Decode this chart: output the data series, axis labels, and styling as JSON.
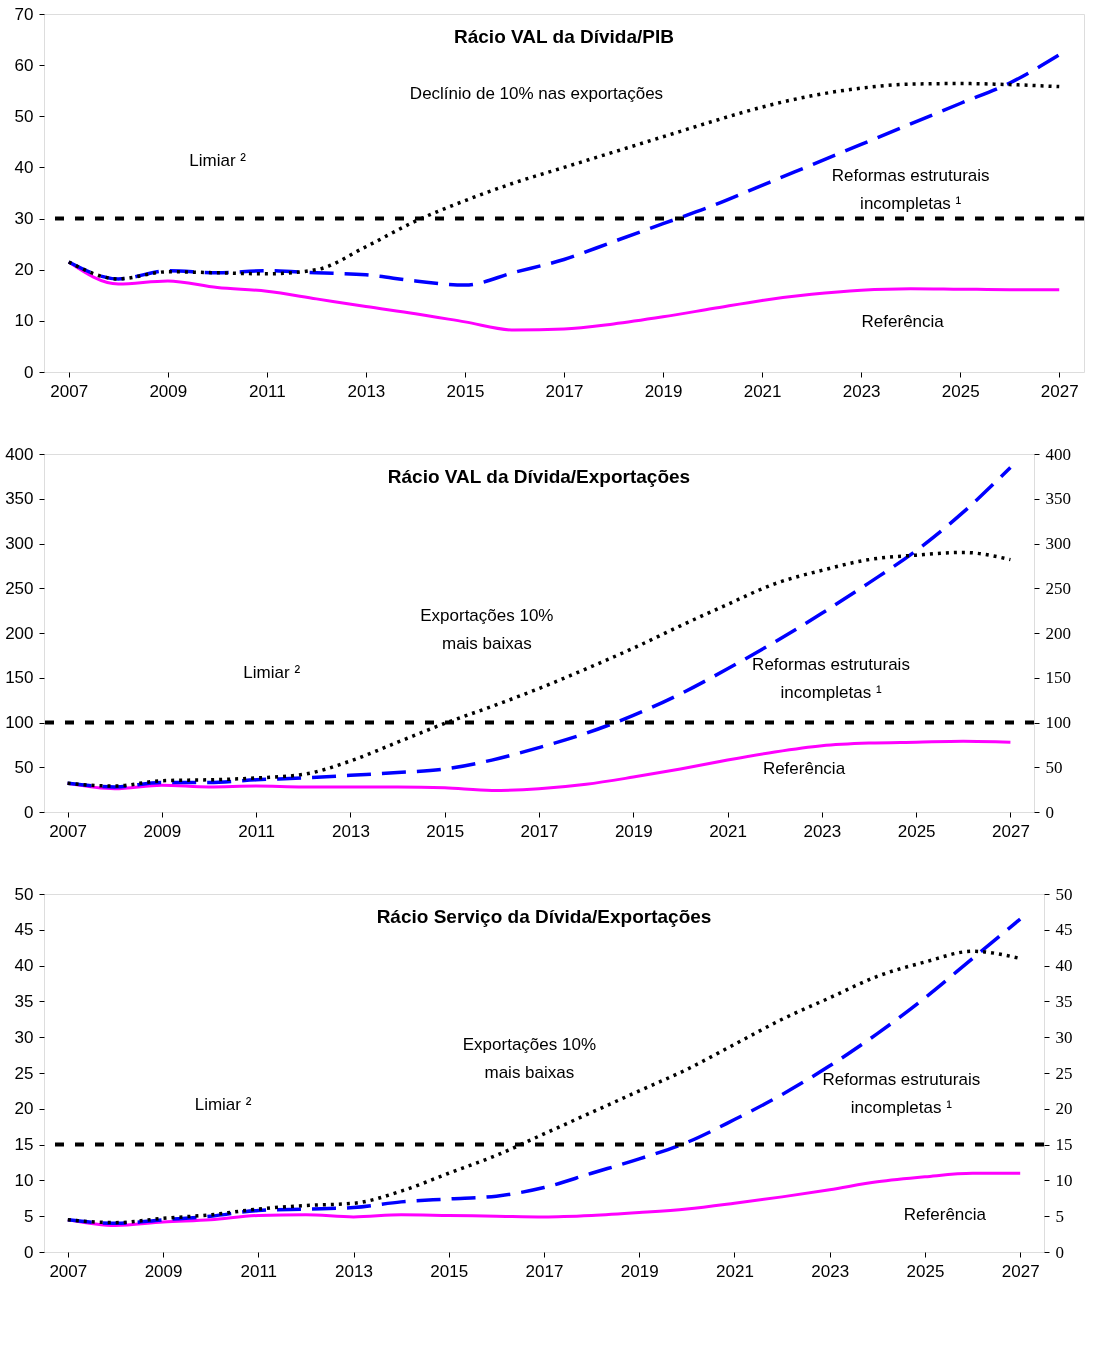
{
  "chart_data": [
    {
      "type": "line",
      "title": "Rácio VAL da Dívida/PIB",
      "x": [
        2007,
        2008,
        2009,
        2010,
        2011,
        2012,
        2013,
        2014,
        2015,
        2016,
        2017,
        2018,
        2019,
        2020,
        2021,
        2022,
        2023,
        2024,
        2025,
        2026,
        2027
      ],
      "xlim": [
        2006.5,
        2027.5
      ],
      "xticks": [
        2007,
        2009,
        2011,
        2013,
        2015,
        2017,
        2019,
        2021,
        2023,
        2025,
        2027
      ],
      "ylim": [
        0,
        70
      ],
      "yticks": [
        0,
        10,
        20,
        30,
        40,
        50,
        60,
        70
      ],
      "legend": false,
      "grid": false,
      "series": [
        {
          "name": "Referência",
          "color": "#ff00ff",
          "line_style": "solid",
          "values": [
            21.5,
            17.2,
            17.8,
            16.5,
            15.8,
            14.3,
            12.8,
            11.4,
            9.8,
            8.2,
            8.4,
            9.4,
            10.8,
            12.4,
            14.0,
            15.2,
            16.0,
            16.3,
            16.2,
            16.1,
            16.1
          ]
        },
        {
          "name": "Reformas estruturais incompletas ¹",
          "color": "#0000ff",
          "line_style": "dashed",
          "values": [
            21.5,
            18.2,
            19.8,
            19.4,
            19.8,
            19.4,
            19.0,
            17.8,
            17.0,
            19.5,
            22.0,
            25.5,
            29.0,
            32.5,
            36.5,
            40.5,
            44.5,
            48.5,
            52.5,
            56.5,
            62.0
          ]
        },
        {
          "name": "Declínio de 10% nas exportações",
          "color": "#000000",
          "line_style": "dotted",
          "values": [
            21.5,
            18.2,
            19.6,
            19.4,
            19.2,
            20.0,
            24.5,
            29.5,
            33.5,
            37.0,
            40.0,
            43.0,
            46.0,
            49.0,
            51.8,
            54.0,
            55.5,
            56.3,
            56.4,
            56.2,
            55.8
          ]
        }
      ],
      "ref_lines": [
        {
          "axis": "y",
          "value": 30,
          "label": "Limiar ²",
          "color": "#000000",
          "line_style": "dotted"
        }
      ]
    },
    {
      "type": "line",
      "title": "Rácio VAL da Dívida/Exportações",
      "x": [
        2007,
        2008,
        2009,
        2010,
        2011,
        2012,
        2013,
        2014,
        2015,
        2016,
        2017,
        2018,
        2019,
        2020,
        2021,
        2022,
        2023,
        2024,
        2025,
        2026,
        2027
      ],
      "xlim": [
        2006.5,
        2027.5
      ],
      "xticks": [
        2007,
        2009,
        2011,
        2013,
        2015,
        2017,
        2019,
        2021,
        2023,
        2025,
        2027
      ],
      "ylim": [
        0,
        400
      ],
      "yticks": [
        0,
        50,
        100,
        150,
        200,
        250,
        300,
        350,
        400
      ],
      "y2lim": [
        0,
        400
      ],
      "y2ticks": [
        0,
        50,
        100,
        150,
        200,
        250,
        300,
        350,
        400
      ],
      "legend": false,
      "grid": false,
      "series": [
        {
          "name": "Referência",
          "color": "#ff00ff",
          "line_style": "solid",
          "values": [
            32,
            26,
            30,
            28,
            29,
            28,
            28,
            28,
            27,
            24,
            26,
            31,
            39,
            48,
            58,
            67,
            74,
            77,
            78,
            79,
            78
          ]
        },
        {
          "name": "Reformas estruturais incompletas ¹",
          "color": "#0000ff",
          "line_style": "dashed",
          "values": [
            32,
            28,
            33,
            33,
            36,
            38,
            41,
            44,
            48,
            58,
            72,
            88,
            108,
            132,
            160,
            190,
            222,
            256,
            292,
            335,
            385
          ]
        },
        {
          "name": "Exportações 10% mais baixas",
          "color": "#000000",
          "line_style": "dotted",
          "values": [
            32,
            29,
            35,
            36,
            38,
            42,
            57,
            78,
            99,
            118,
            138,
            160,
            183,
            208,
            232,
            255,
            270,
            282,
            287,
            290,
            282
          ]
        }
      ],
      "ref_lines": [
        {
          "axis": "y",
          "value": 100,
          "label": "Limiar ²",
          "color": "#000000",
          "line_style": "dotted"
        }
      ]
    },
    {
      "type": "line",
      "title": "Rácio Serviço da Dívida/Exportações",
      "x": [
        2007,
        2008,
        2009,
        2010,
        2011,
        2012,
        2013,
        2014,
        2015,
        2016,
        2017,
        2018,
        2019,
        2020,
        2021,
        2022,
        2023,
        2024,
        2025,
        2026,
        2027
      ],
      "xlim": [
        2006.5,
        2027.5
      ],
      "xticks": [
        2007,
        2009,
        2011,
        2013,
        2015,
        2017,
        2019,
        2021,
        2023,
        2025,
        2027
      ],
      "ylim": [
        0,
        50
      ],
      "yticks": [
        0,
        5,
        10,
        15,
        20,
        25,
        30,
        35,
        40,
        45,
        50
      ],
      "y2lim": [
        0,
        50
      ],
      "y2ticks": [
        0,
        5,
        10,
        15,
        20,
        25,
        30,
        35,
        40,
        45,
        50
      ],
      "legend": false,
      "grid": false,
      "series": [
        {
          "name": "Referência",
          "color": "#ff00ff",
          "line_style": "solid",
          "values": [
            4.5,
            3.7,
            4.2,
            4.5,
            5.1,
            5.2,
            4.9,
            5.2,
            5.1,
            5.0,
            4.9,
            5.1,
            5.5,
            6.0,
            6.8,
            7.7,
            8.7,
            9.8,
            10.5,
            11.0,
            11.0
          ]
        },
        {
          "name": "Reformas estruturais incompletas ¹",
          "color": "#0000ff",
          "line_style": "dashed",
          "values": [
            4.5,
            4.0,
            4.5,
            5.0,
            5.8,
            6.0,
            6.2,
            7.0,
            7.4,
            7.8,
            9.0,
            11.0,
            13.0,
            15.3,
            18.5,
            22.0,
            26.0,
            30.5,
            35.5,
            41.0,
            46.5
          ]
        },
        {
          "name": "Exportações 10% mais baixas",
          "color": "#000000",
          "line_style": "dotted",
          "values": [
            4.5,
            4.1,
            4.7,
            5.2,
            6.0,
            6.5,
            6.8,
            8.5,
            11.0,
            13.5,
            16.5,
            19.5,
            22.5,
            25.5,
            29.0,
            32.5,
            35.5,
            38.5,
            40.5,
            42.0,
            41.0
          ]
        }
      ],
      "ref_lines": [
        {
          "axis": "y",
          "value": 15,
          "label": "Limiar ²",
          "color": "#000000",
          "line_style": "dotted"
        }
      ]
    }
  ]
}
